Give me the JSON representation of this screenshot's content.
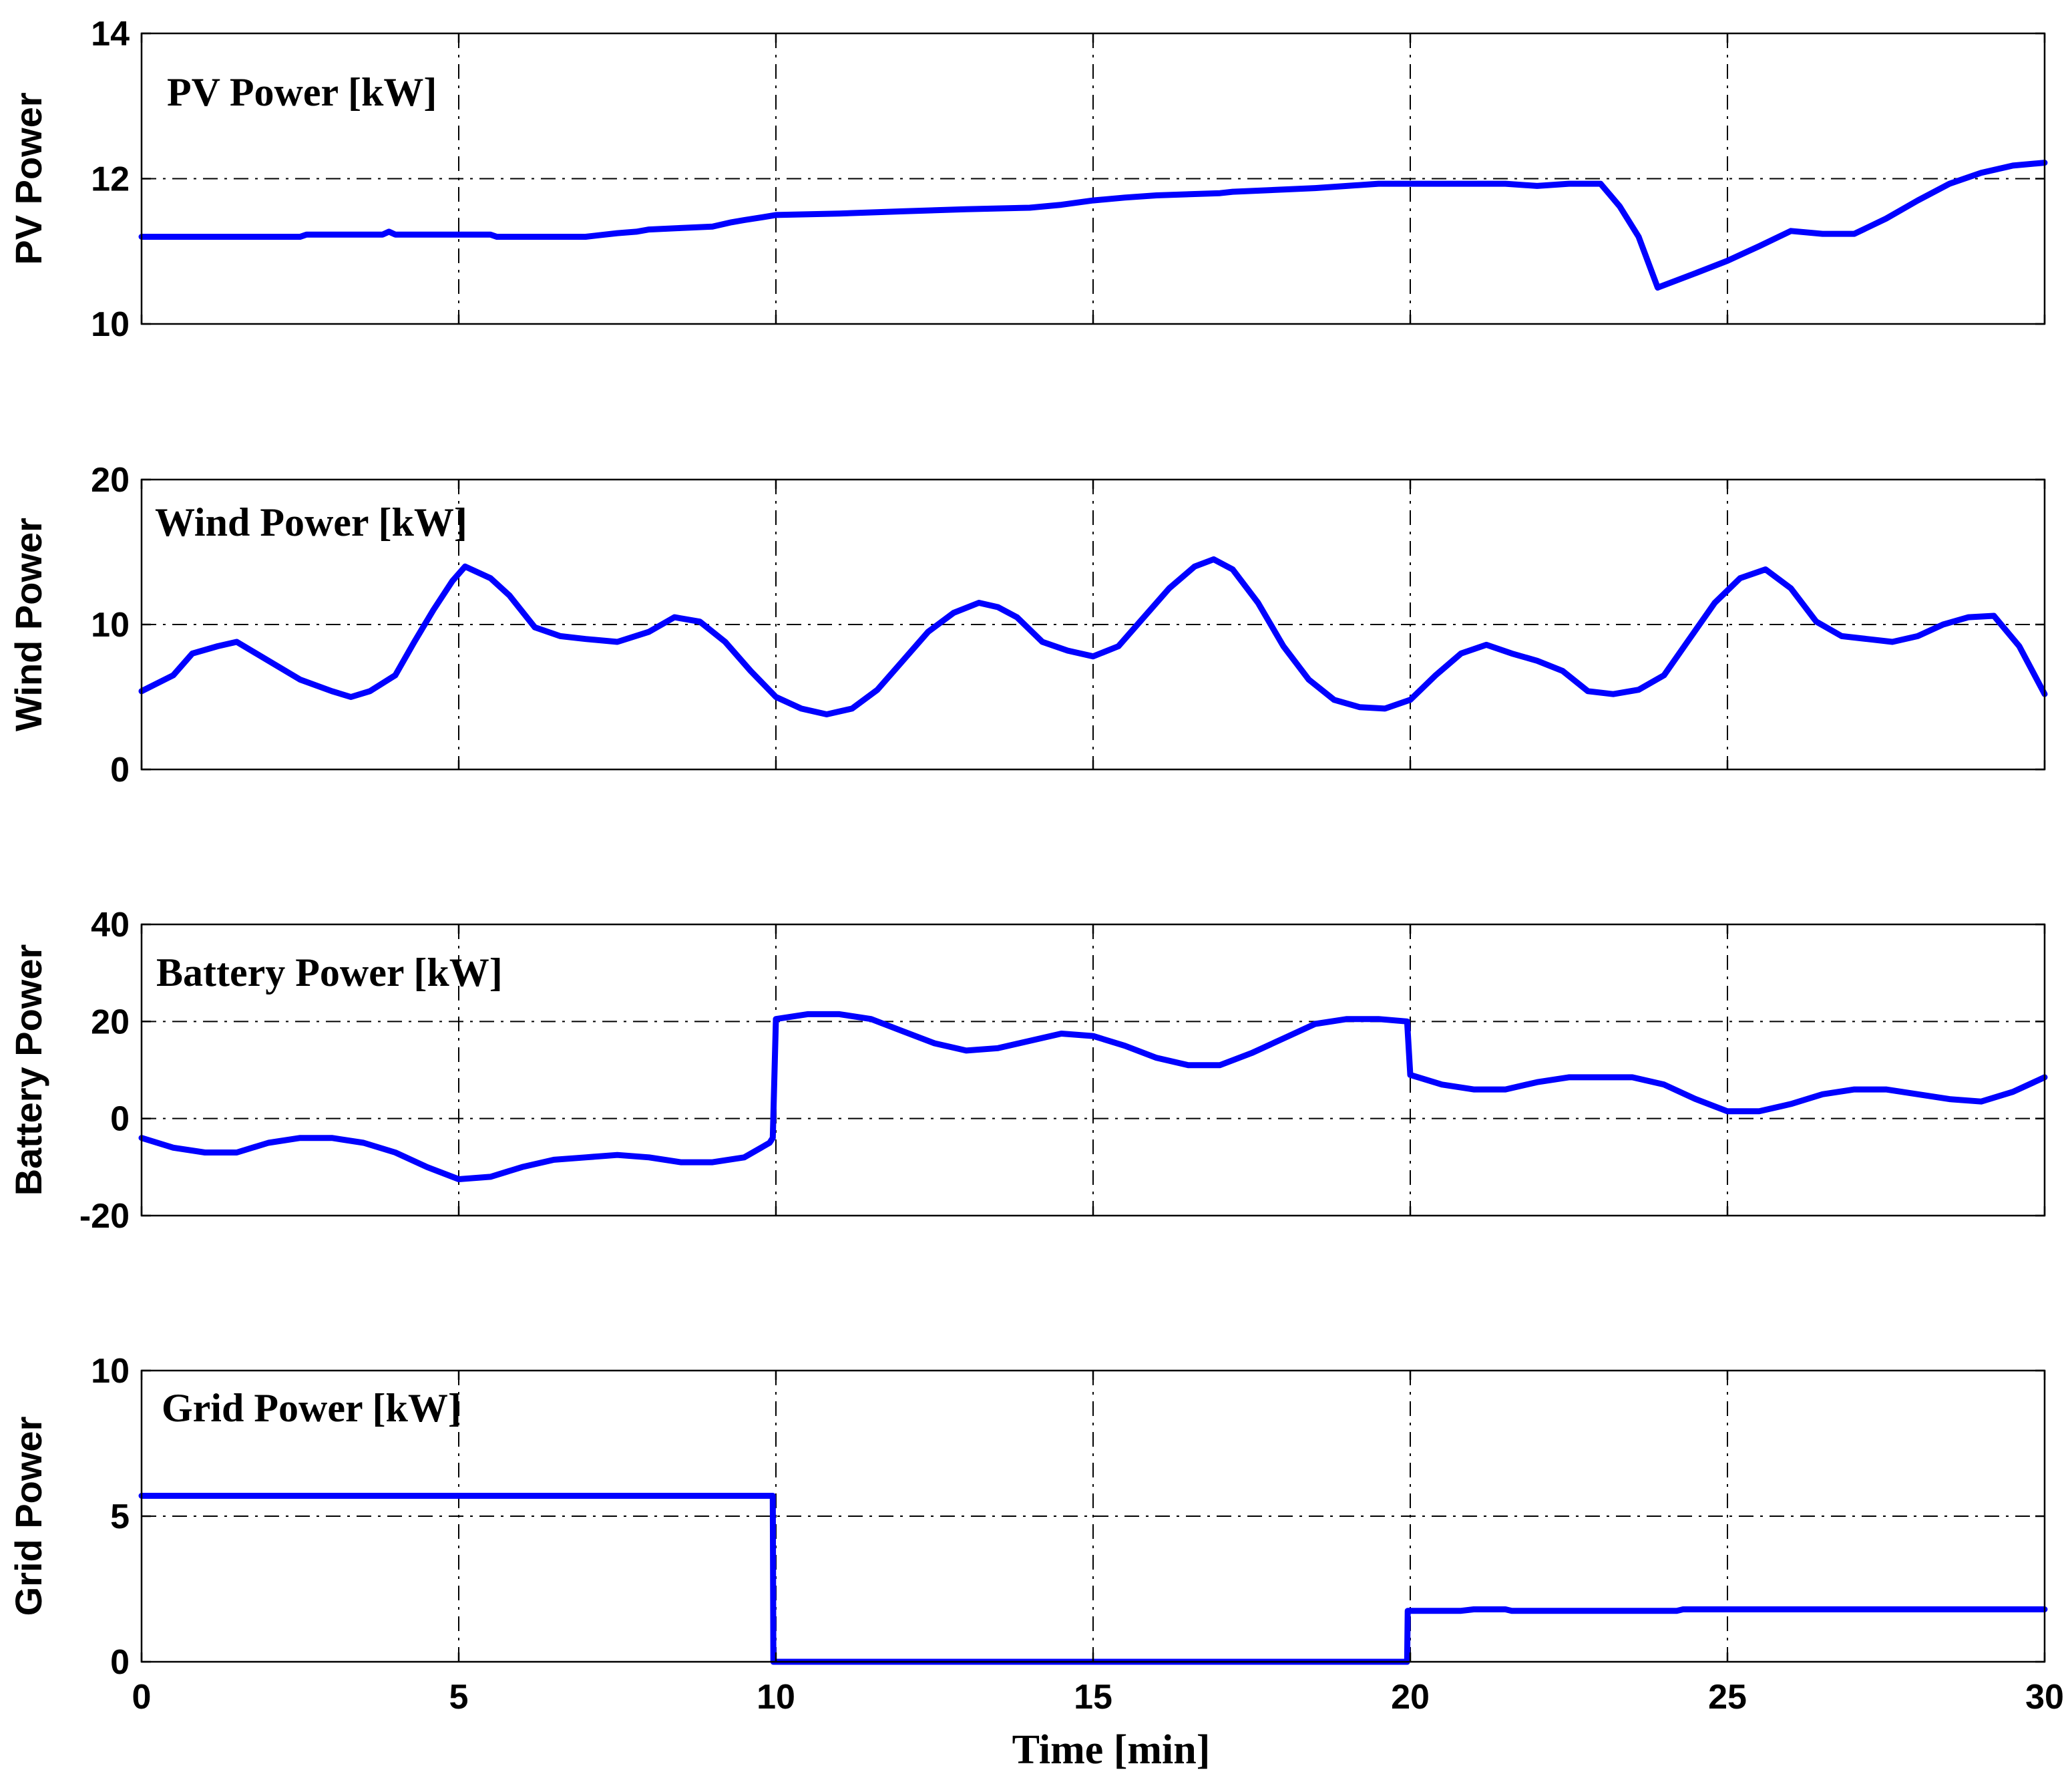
{
  "chart_data": [
    {
      "type": "line",
      "title": "PV Power [kW]",
      "ylabel": "PV Power",
      "xlabel": "",
      "xlim": [
        0,
        30
      ],
      "ylim": [
        10,
        14
      ],
      "xticks": [
        "0",
        "5",
        "10",
        "15",
        "20",
        "25",
        "30"
      ],
      "yticks": [
        "10",
        "12",
        "14"
      ],
      "grid": true,
      "series": [
        {
          "name": "PV Power",
          "color": "#0000ff",
          "x": [
            0,
            2.5,
            2.6,
            3.8,
            3.9,
            4.0,
            4.3,
            5.0,
            5.5,
            5.6,
            6.0,
            7.0,
            7.2,
            7.5,
            7.8,
            8.0,
            8.5,
            9.0,
            9.3,
            9.5,
            9.8,
            10.0,
            11.0,
            12.0,
            13.0,
            14.0,
            14.5,
            15.0,
            15.5,
            16.0,
            17.0,
            17.2,
            18.0,
            18.5,
            19.0,
            19.5,
            20.0,
            21.5,
            22.0,
            22.5,
            23.0,
            23.3,
            23.6,
            23.9,
            24.5,
            25.0,
            25.5,
            26.0,
            26.5,
            27.0,
            27.5,
            28.0,
            28.5,
            29.0,
            29.5,
            30.0
          ],
          "values": [
            11.2,
            11.2,
            11.23,
            11.23,
            11.27,
            11.23,
            11.23,
            11.23,
            11.23,
            11.2,
            11.2,
            11.2,
            11.22,
            11.25,
            11.27,
            11.3,
            11.32,
            11.34,
            11.4,
            11.43,
            11.47,
            11.5,
            11.52,
            11.55,
            11.58,
            11.6,
            11.64,
            11.7,
            11.74,
            11.77,
            11.8,
            11.82,
            11.85,
            11.87,
            11.9,
            11.93,
            11.93,
            11.93,
            11.9,
            11.93,
            11.93,
            11.62,
            11.2,
            10.5,
            10.7,
            10.87,
            11.07,
            11.28,
            11.24,
            11.24,
            11.45,
            11.7,
            11.93,
            12.08,
            12.18,
            12.22
          ]
        }
      ]
    },
    {
      "type": "line",
      "title": "Wind Power [kW]",
      "ylabel": "Wind Power",
      "xlabel": "",
      "xlim": [
        0,
        30
      ],
      "ylim": [
        0,
        20
      ],
      "xticks": [
        "0",
        "5",
        "10",
        "15",
        "20",
        "25",
        "30"
      ],
      "yticks": [
        "0",
        "10",
        "20"
      ],
      "grid": true,
      "series": [
        {
          "name": "Wind Power",
          "color": "#0000ff",
          "x": [
            0,
            0.5,
            0.8,
            1.2,
            1.5,
            2.0,
            2.5,
            3.0,
            3.3,
            3.6,
            4.0,
            4.3,
            4.6,
            4.9,
            5.1,
            5.5,
            5.8,
            6.2,
            6.6,
            7.0,
            7.5,
            8.0,
            8.4,
            8.8,
            9.2,
            9.6,
            10.0,
            10.4,
            10.8,
            11.2,
            11.6,
            12.0,
            12.4,
            12.8,
            13.2,
            13.5,
            13.8,
            14.2,
            14.6,
            15.0,
            15.4,
            15.8,
            16.2,
            16.6,
            16.9,
            17.2,
            17.6,
            18.0,
            18.4,
            18.8,
            19.2,
            19.6,
            20.0,
            20.4,
            20.8,
            21.2,
            21.6,
            22.0,
            22.4,
            22.8,
            23.2,
            23.6,
            24.0,
            24.4,
            24.8,
            25.2,
            25.6,
            26.0,
            26.4,
            26.8,
            27.2,
            27.6,
            28.0,
            28.4,
            28.8,
            29.2,
            29.6,
            30.0
          ],
          "values": [
            5.4,
            6.5,
            8.0,
            8.5,
            8.8,
            7.5,
            6.2,
            5.4,
            5.0,
            5.4,
            6.5,
            8.8,
            11.0,
            13.0,
            14.0,
            13.2,
            12.0,
            9.8,
            9.2,
            9.0,
            8.8,
            9.5,
            10.5,
            10.2,
            8.8,
            6.8,
            5.0,
            4.2,
            3.8,
            4.2,
            5.5,
            7.5,
            9.5,
            10.8,
            11.5,
            11.2,
            10.5,
            8.8,
            8.2,
            7.8,
            8.5,
            10.5,
            12.5,
            14.0,
            14.5,
            13.8,
            11.5,
            8.5,
            6.2,
            4.8,
            4.3,
            4.2,
            4.8,
            6.5,
            8.0,
            8.6,
            8.0,
            7.5,
            6.8,
            5.4,
            5.2,
            5.5,
            6.5,
            9.0,
            11.5,
            13.2,
            13.8,
            12.5,
            10.2,
            9.2,
            9.0,
            8.8,
            9.2,
            10.0,
            10.5,
            10.6,
            8.5,
            5.2
          ]
        }
      ]
    },
    {
      "type": "line",
      "title": "Battery Power [kW]",
      "ylabel": "Battery Power",
      "xlabel": "",
      "xlim": [
        0,
        30
      ],
      "ylim": [
        -20,
        40
      ],
      "xticks": [
        "0",
        "5",
        "10",
        "15",
        "20",
        "25",
        "30"
      ],
      "yticks": [
        "-20",
        "0",
        "20",
        "40"
      ],
      "grid": true,
      "series": [
        {
          "name": "Battery Power",
          "color": "#0000ff",
          "x": [
            0,
            0.5,
            1.0,
            1.5,
            2.0,
            2.5,
            3.0,
            3.5,
            4.0,
            4.5,
            5.0,
            5.5,
            6.0,
            6.5,
            7.0,
            7.5,
            8.0,
            8.5,
            9.0,
            9.5,
            9.9,
            9.95,
            10.0,
            10.5,
            11.0,
            11.5,
            12.0,
            12.5,
            13.0,
            13.5,
            14.0,
            14.5,
            15.0,
            15.5,
            16.0,
            16.5,
            17.0,
            17.5,
            18.0,
            18.5,
            19.0,
            19.5,
            19.95,
            20.0,
            20.5,
            21.0,
            21.5,
            22.0,
            22.5,
            23.0,
            23.5,
            24.0,
            24.5,
            25.0,
            25.5,
            26.0,
            26.5,
            27.0,
            27.5,
            28.0,
            28.5,
            29.0,
            29.5,
            30.0
          ],
          "values": [
            -4,
            -6,
            -7,
            -7,
            -5,
            -4,
            -4,
            -5,
            -7,
            -10,
            -12.5,
            -12,
            -10,
            -8.5,
            -8,
            -7.5,
            -8,
            -9,
            -9,
            -8,
            -5,
            -4,
            20.5,
            21.5,
            21.5,
            20.5,
            18,
            15.5,
            14,
            14.5,
            16,
            17.5,
            17,
            15,
            12.5,
            11,
            11,
            13.5,
            16.5,
            19.5,
            20.5,
            20.5,
            20,
            9,
            7,
            6,
            6,
            7.5,
            8.5,
            8.5,
            8.5,
            7,
            4,
            1.5,
            1.5,
            3,
            5,
            6,
            6,
            5,
            4,
            3.5,
            5.5,
            8.5
          ]
        }
      ]
    },
    {
      "type": "line",
      "title": "Grid Power [kW]",
      "ylabel": "Grid Power",
      "xlabel": "Time [min]",
      "xlim": [
        0,
        30
      ],
      "ylim": [
        0,
        10
      ],
      "xticks": [
        "0",
        "5",
        "10",
        "15",
        "20",
        "25",
        "30"
      ],
      "yticks": [
        "0",
        "5",
        "10"
      ],
      "grid": true,
      "series": [
        {
          "name": "Grid Power",
          "color": "#0000ff",
          "x": [
            0,
            9.95,
            9.96,
            19.95,
            19.96,
            20.8,
            21.0,
            21.5,
            21.6,
            24.2,
            24.3,
            30.0
          ],
          "values": [
            5.7,
            5.7,
            0,
            0,
            1.75,
            1.75,
            1.8,
            1.8,
            1.75,
            1.75,
            1.8,
            1.8
          ]
        }
      ]
    }
  ]
}
